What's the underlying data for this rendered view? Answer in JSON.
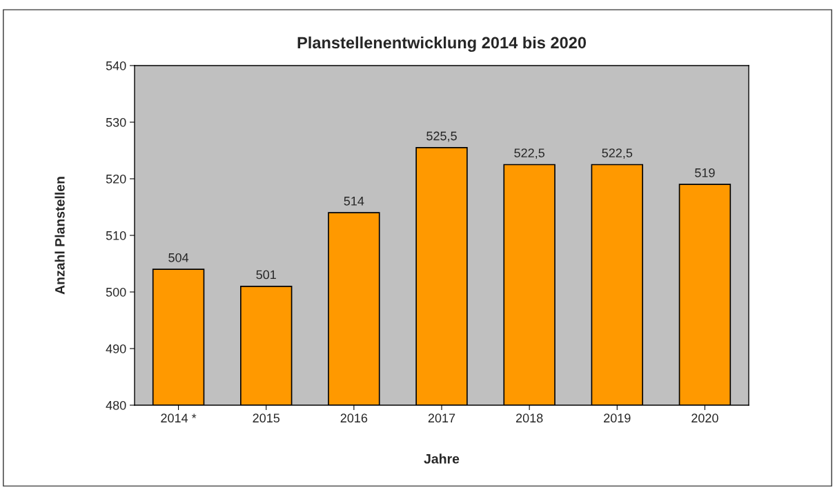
{
  "chart_data": {
    "type": "bar",
    "title": "Planstellenentwicklung 2014 bis 2020",
    "xlabel": "Jahre",
    "ylabel": "Anzahl Planstellen",
    "categories": [
      "2014 *",
      "2015",
      "2016",
      "2017",
      "2018",
      "2019",
      "2020"
    ],
    "values": [
      504,
      501,
      514,
      525.5,
      522.5,
      522.5,
      519
    ],
    "value_labels": [
      "504",
      "501",
      "514",
      "525,5",
      "522,5",
      "522,5",
      "519"
    ],
    "color": "#ff9900",
    "ylim": [
      480,
      540
    ],
    "yticks": [
      480,
      490,
      500,
      510,
      520,
      530,
      540
    ],
    "grid": false
  }
}
